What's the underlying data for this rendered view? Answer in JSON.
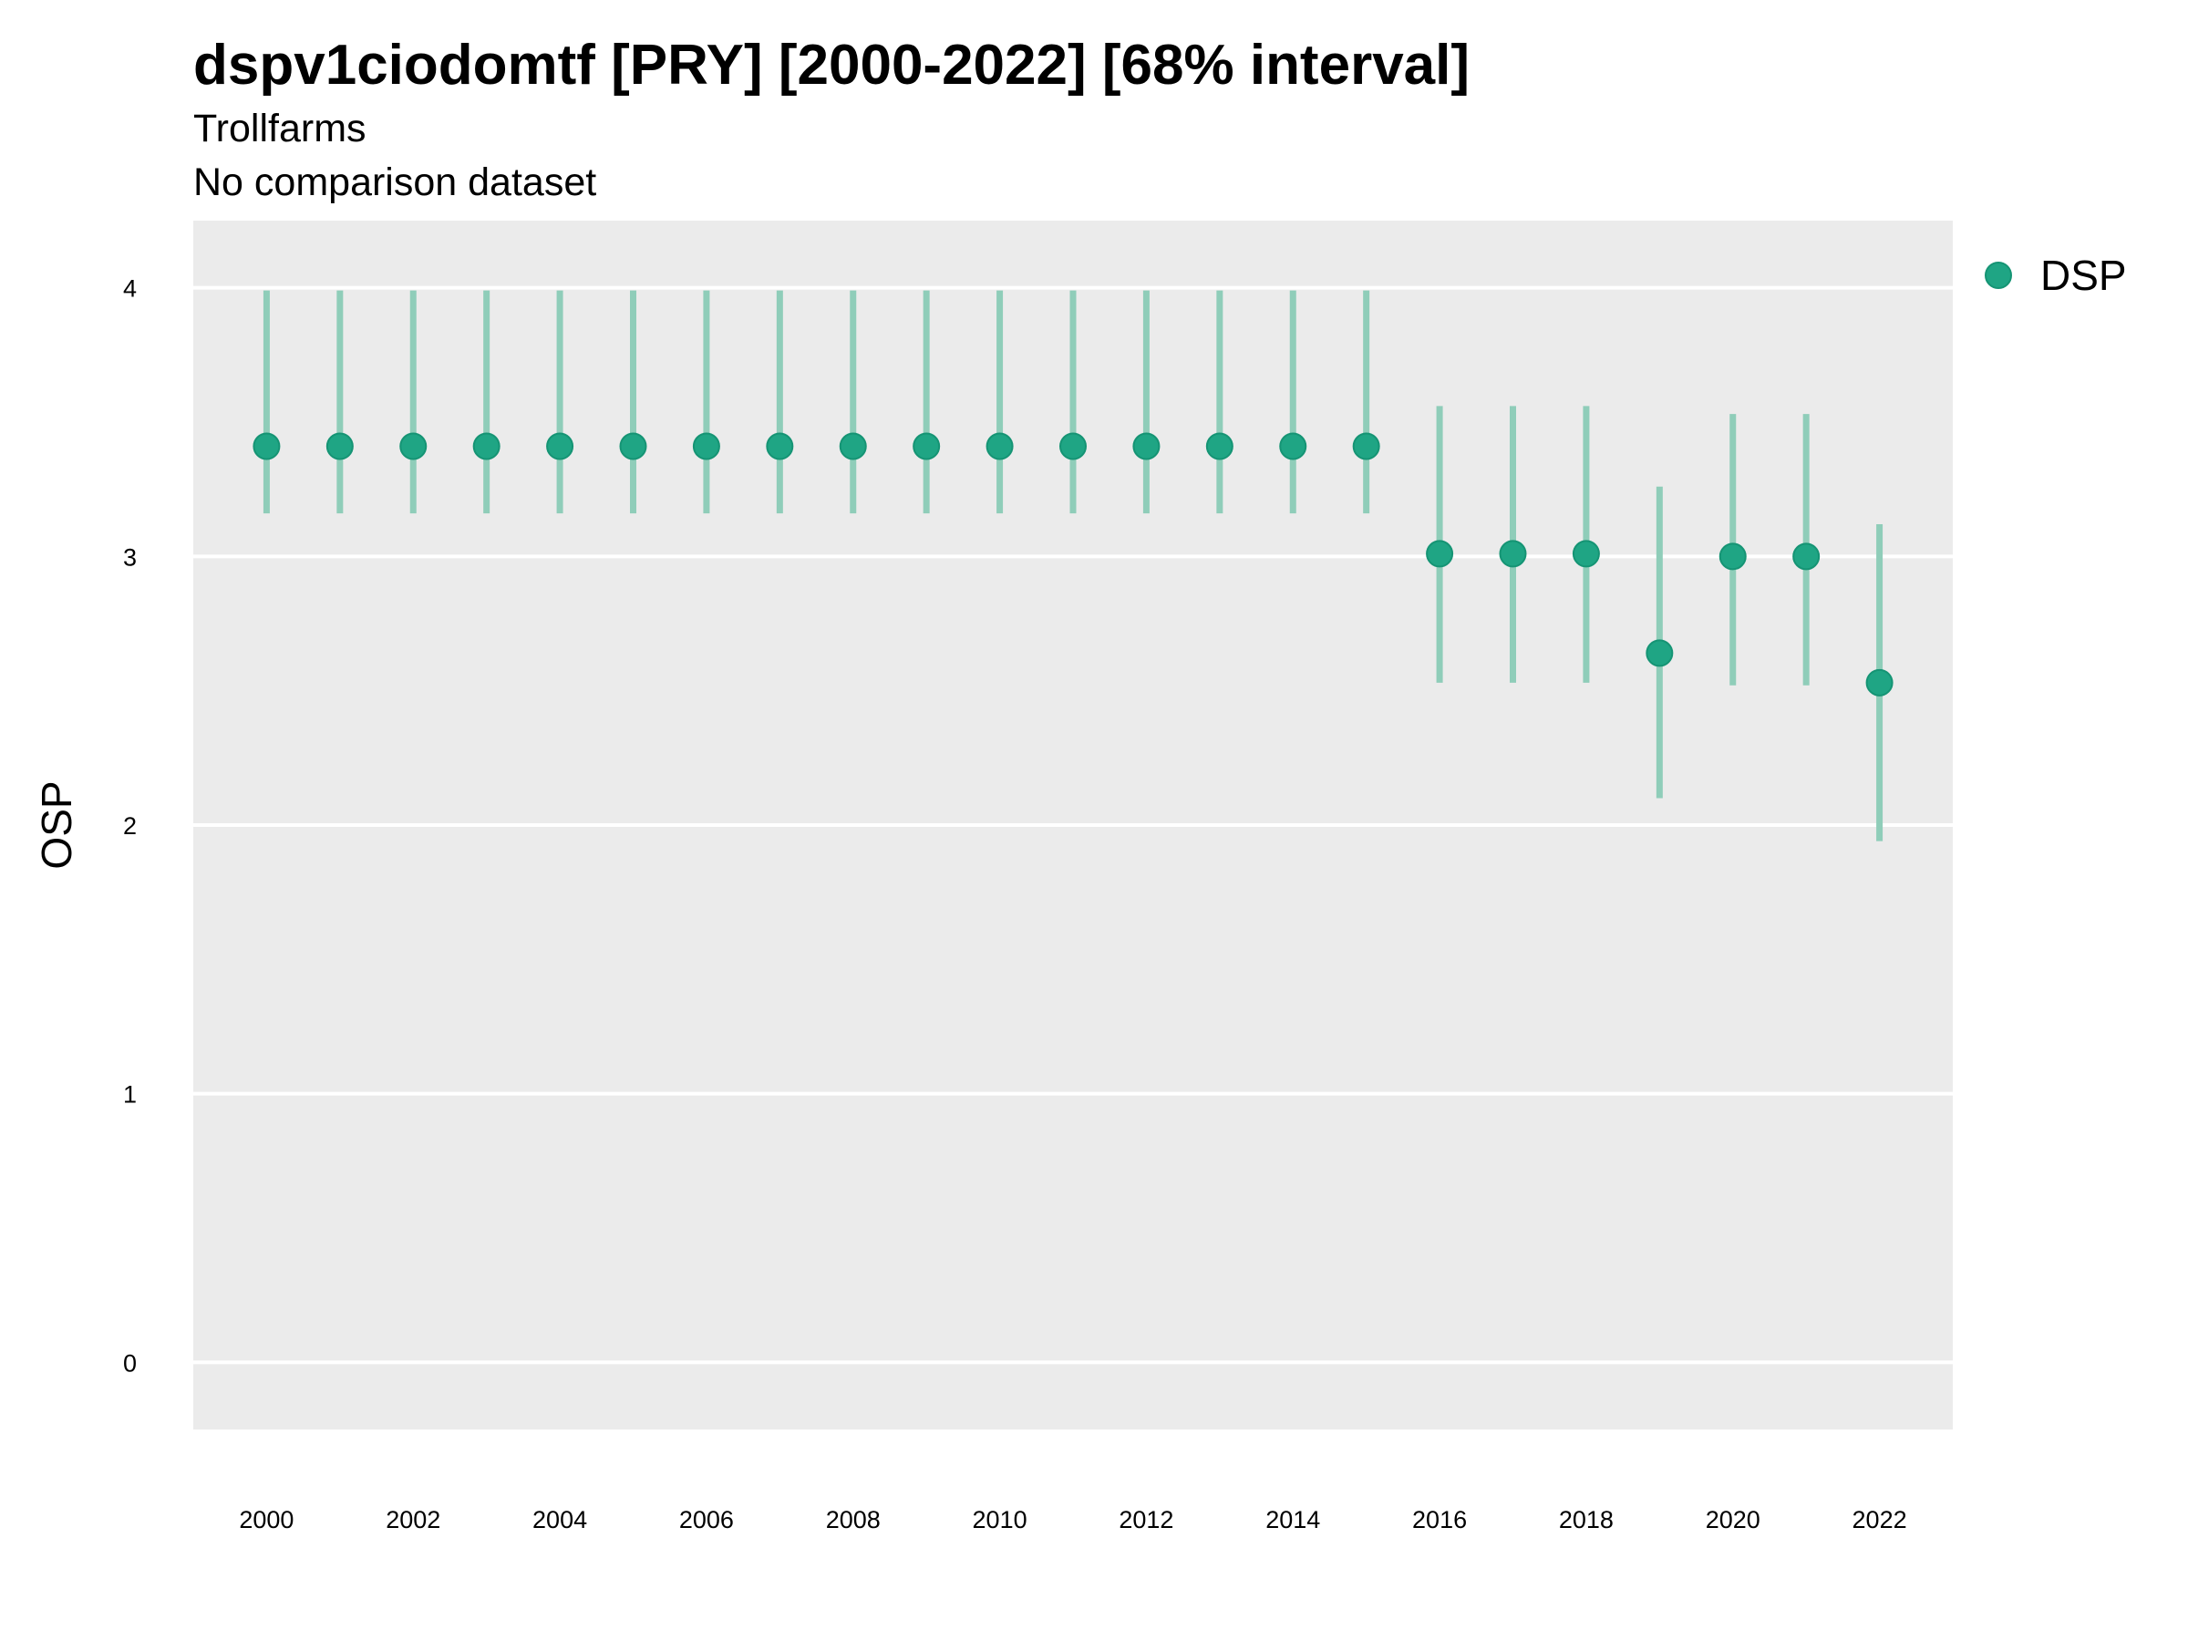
{
  "chart_data": {
    "type": "scatter",
    "title": "dspv1ciodomtf [PRY] [2000-2022] [68% interval]",
    "subtitle": "Trollfarms",
    "subtitle2": "No comparison dataset",
    "xlabel": "",
    "ylabel": "OSP",
    "xlim": [
      1999,
      2023
    ],
    "ylim": [
      -0.25,
      4.25
    ],
    "x_ticks": [
      2000,
      2002,
      2004,
      2006,
      2008,
      2010,
      2012,
      2014,
      2016,
      2018,
      2020,
      2022
    ],
    "y_ticks": [
      0,
      1,
      2,
      3,
      4
    ],
    "grid": true,
    "legend": "right",
    "series": [
      {
        "name": "DSP",
        "color": "#1fa584",
        "interval_color": "#8fcdb9",
        "x": [
          2000,
          2001,
          2002,
          2003,
          2004,
          2005,
          2006,
          2007,
          2008,
          2009,
          2010,
          2011,
          2012,
          2013,
          2014,
          2015,
          2016,
          2017,
          2018,
          2019,
          2020,
          2021,
          2022
        ],
        "y": [
          3.41,
          3.41,
          3.41,
          3.41,
          3.41,
          3.41,
          3.41,
          3.41,
          3.41,
          3.41,
          3.41,
          3.41,
          3.41,
          3.41,
          3.41,
          3.41,
          3.01,
          3.01,
          3.01,
          2.64,
          3.0,
          3.0,
          2.53
        ],
        "lower": [
          3.16,
          3.16,
          3.16,
          3.16,
          3.16,
          3.16,
          3.16,
          3.16,
          3.16,
          3.16,
          3.16,
          3.16,
          3.16,
          3.16,
          3.16,
          3.16,
          2.53,
          2.53,
          2.53,
          2.1,
          2.52,
          2.52,
          1.94
        ],
        "upper": [
          3.99,
          3.99,
          3.99,
          3.99,
          3.99,
          3.99,
          3.99,
          3.99,
          3.99,
          3.99,
          3.99,
          3.99,
          3.99,
          3.99,
          3.99,
          3.99,
          3.56,
          3.56,
          3.56,
          3.26,
          3.53,
          3.53,
          3.12
        ]
      }
    ]
  },
  "colors": {
    "panel_background": "#ebebeb",
    "grid": "#ffffff"
  }
}
